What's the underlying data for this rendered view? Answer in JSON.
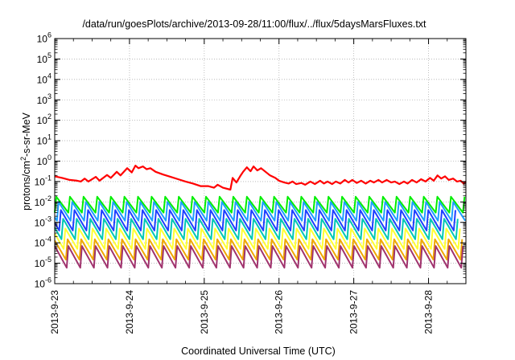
{
  "chart_data": {
    "type": "line",
    "title": "/data/run/goesPlots/archive/2013-09-28/11:00/flux/../flux/5daysMarsFluxes.txt",
    "xlabel": "Coordinated Universal Time (UTC)",
    "ylabel_prefix": "protons/cm",
    "ylabel_sup": "2",
    "ylabel_suffix": "-s-sr-MeV",
    "x_axis": {
      "unit": "days since 2013-09-23 00:00 UTC",
      "range": [
        0,
        5.5
      ],
      "tick_values": [
        0,
        1,
        2,
        3,
        4,
        5
      ],
      "tick_labels": [
        "2013-9-23",
        "2013-9-24",
        "2013-9-25",
        "2013-9-26",
        "2013-9-27",
        "2013-9-28"
      ]
    },
    "y_axis": {
      "scale": "log",
      "range_exponent": [
        -6,
        6
      ],
      "tick_exponents": [
        -6,
        -5,
        -4,
        -3,
        -2,
        -1,
        0,
        1,
        2,
        3,
        4,
        5,
        6
      ]
    },
    "grid": true,
    "legend": "none",
    "series": [
      {
        "color": "#ff0000",
        "kind": "primary",
        "points": [
          [
            0.0,
            0.18
          ],
          [
            0.1,
            0.15
          ],
          [
            0.2,
            0.12
          ],
          [
            0.3,
            0.11
          ],
          [
            0.35,
            0.1
          ],
          [
            0.4,
            0.14
          ],
          [
            0.45,
            0.1
          ],
          [
            0.55,
            0.17
          ],
          [
            0.6,
            0.11
          ],
          [
            0.7,
            0.21
          ],
          [
            0.75,
            0.15
          ],
          [
            0.83,
            0.3
          ],
          [
            0.88,
            0.2
          ],
          [
            0.97,
            0.45
          ],
          [
            1.03,
            0.28
          ],
          [
            1.08,
            0.6
          ],
          [
            1.12,
            0.45
          ],
          [
            1.18,
            0.55
          ],
          [
            1.23,
            0.4
          ],
          [
            1.28,
            0.45
          ],
          [
            1.35,
            0.3
          ],
          [
            1.45,
            0.22
          ],
          [
            1.55,
            0.17
          ],
          [
            1.65,
            0.13
          ],
          [
            1.75,
            0.1
          ],
          [
            1.85,
            0.08
          ],
          [
            1.95,
            0.06
          ],
          [
            2.05,
            0.06
          ],
          [
            2.13,
            0.05
          ],
          [
            2.18,
            0.07
          ],
          [
            2.25,
            0.05
          ],
          [
            2.35,
            0.04
          ],
          [
            2.38,
            0.15
          ],
          [
            2.43,
            0.09
          ],
          [
            2.48,
            0.18
          ],
          [
            2.52,
            0.3
          ],
          [
            2.57,
            0.5
          ],
          [
            2.62,
            0.32
          ],
          [
            2.66,
            0.55
          ],
          [
            2.71,
            0.35
          ],
          [
            2.76,
            0.45
          ],
          [
            2.82,
            0.3
          ],
          [
            2.88,
            0.2
          ],
          [
            2.95,
            0.15
          ],
          [
            3.0,
            0.11
          ],
          [
            3.07,
            0.09
          ],
          [
            3.13,
            0.08
          ],
          [
            3.18,
            0.1
          ],
          [
            3.23,
            0.075
          ],
          [
            3.3,
            0.085
          ],
          [
            3.35,
            0.07
          ],
          [
            3.42,
            0.1
          ],
          [
            3.48,
            0.075
          ],
          [
            3.55,
            0.11
          ],
          [
            3.6,
            0.08
          ],
          [
            3.65,
            0.1
          ],
          [
            3.71,
            0.075
          ],
          [
            3.76,
            0.1
          ],
          [
            3.82,
            0.08
          ],
          [
            3.88,
            0.12
          ],
          [
            3.93,
            0.09
          ],
          [
            3.98,
            0.12
          ],
          [
            4.04,
            0.085
          ],
          [
            4.1,
            0.11
          ],
          [
            4.16,
            0.08
          ],
          [
            4.22,
            0.11
          ],
          [
            4.27,
            0.09
          ],
          [
            4.33,
            0.12
          ],
          [
            4.38,
            0.09
          ],
          [
            4.44,
            0.12
          ],
          [
            4.5,
            0.09
          ],
          [
            4.55,
            0.1
          ],
          [
            4.61,
            0.075
          ],
          [
            4.67,
            0.1
          ],
          [
            4.72,
            0.08
          ],
          [
            4.78,
            0.12
          ],
          [
            4.84,
            0.09
          ],
          [
            4.9,
            0.13
          ],
          [
            4.96,
            0.1
          ],
          [
            5.02,
            0.15
          ],
          [
            5.07,
            0.11
          ],
          [
            5.12,
            0.2
          ],
          [
            5.17,
            0.14
          ],
          [
            5.22,
            0.18
          ],
          [
            5.27,
            0.12
          ],
          [
            5.33,
            0.14
          ],
          [
            5.38,
            0.1
          ],
          [
            5.43,
            0.11
          ],
          [
            5.47,
            0.08
          ],
          [
            5.5,
            0.1
          ]
        ]
      },
      {
        "color": "#00ee00",
        "kind": "sawtooth",
        "peak": 0.018,
        "trough": 0.003,
        "period": 0.182,
        "phase": 0.0
      },
      {
        "color": "#1f9fff",
        "kind": "sawtooth",
        "peak": 0.01,
        "trough": 0.0012,
        "period": 0.182,
        "phase": 0.03
      },
      {
        "color": "#1f3fff",
        "kind": "sawtooth",
        "peak": 0.004,
        "trough": 0.0004,
        "period": 0.182,
        "phase": 0.06
      },
      {
        "color": "#00c8b4",
        "kind": "sawtooth",
        "peak": 0.0015,
        "trough": 0.00015,
        "period": 0.182,
        "phase": 0.09
      },
      {
        "color": "#ffff33",
        "kind": "sawtooth",
        "peak": 0.0005,
        "trough": 5e-05,
        "period": 0.182,
        "phase": 0.12
      },
      {
        "color": "#f0a800",
        "kind": "sawtooth",
        "peak": 0.00015,
        "trough": 1.5e-05,
        "period": 0.182,
        "phase": 0.15
      },
      {
        "color": "#a0336e",
        "kind": "sawtooth",
        "peak": 7e-05,
        "trough": 6e-06,
        "period": 0.182,
        "phase": 0.16
      }
    ]
  }
}
